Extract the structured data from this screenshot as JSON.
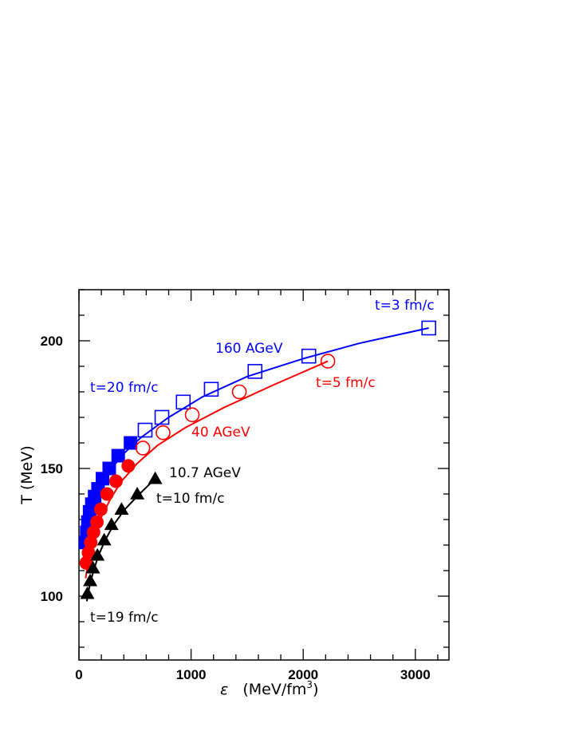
{
  "chart_data": {
    "type": "scatter",
    "xlabel_symbol": "ε",
    "xlabel_units": "(MeV/fm",
    "xlabel_exp": "3",
    "xlabel_close": ")",
    "ylabel": "T  (MeV)",
    "xlim": [
      0,
      3300
    ],
    "ylim": [
      75,
      220
    ],
    "x_ticks": [
      0,
      1000,
      2000,
      3000
    ],
    "y_ticks": [
      100,
      150,
      200
    ],
    "grid": false,
    "series": [
      {
        "name": "160 AGeV",
        "color": "#0000ff",
        "points": [
          {
            "x": 60,
            "y": 121,
            "marker": "square-filled"
          },
          {
            "x": 70,
            "y": 125,
            "marker": "square-filled"
          },
          {
            "x": 80,
            "y": 129,
            "marker": "square-filled"
          },
          {
            "x": 95,
            "y": 133,
            "marker": "square-filled"
          },
          {
            "x": 115,
            "y": 136,
            "marker": "square-filled"
          },
          {
            "x": 140,
            "y": 139,
            "marker": "square-filled"
          },
          {
            "x": 170,
            "y": 142,
            "marker": "square-filled"
          },
          {
            "x": 210,
            "y": 146,
            "marker": "square-filled"
          },
          {
            "x": 270,
            "y": 150,
            "marker": "square-filled"
          },
          {
            "x": 350,
            "y": 155,
            "marker": "square-filled"
          },
          {
            "x": 460,
            "y": 160,
            "marker": "square-filled"
          },
          {
            "x": 590,
            "y": 165,
            "marker": "square-open"
          },
          {
            "x": 740,
            "y": 170,
            "marker": "square-open"
          },
          {
            "x": 930,
            "y": 176,
            "marker": "square-open"
          },
          {
            "x": 1180,
            "y": 181,
            "marker": "square-open"
          },
          {
            "x": 1570,
            "y": 188,
            "marker": "square-open"
          },
          {
            "x": 2050,
            "y": 194,
            "marker": "square-open"
          },
          {
            "x": 3120,
            "y": 205,
            "marker": "square-open"
          }
        ],
        "fit_curve": [
          [
            55,
            119
          ],
          [
            80,
            127
          ],
          [
            120,
            134
          ],
          [
            180,
            141
          ],
          [
            260,
            148
          ],
          [
            380,
            155
          ],
          [
            550,
            162
          ],
          [
            800,
            170
          ],
          [
            1100,
            178
          ],
          [
            1500,
            186
          ],
          [
            2000,
            193
          ],
          [
            2500,
            199
          ],
          [
            3120,
            205
          ]
        ]
      },
      {
        "name": "40 AGeV",
        "color": "#ff0000",
        "points": [
          {
            "x": 65,
            "y": 113,
            "marker": "circle-filled"
          },
          {
            "x": 85,
            "y": 117,
            "marker": "circle-filled"
          },
          {
            "x": 105,
            "y": 121,
            "marker": "circle-filled"
          },
          {
            "x": 130,
            "y": 125,
            "marker": "circle-filled"
          },
          {
            "x": 160,
            "y": 129,
            "marker": "circle-filled"
          },
          {
            "x": 195,
            "y": 134,
            "marker": "circle-filled"
          },
          {
            "x": 250,
            "y": 140,
            "marker": "circle-filled"
          },
          {
            "x": 330,
            "y": 145,
            "marker": "circle-filled"
          },
          {
            "x": 440,
            "y": 151,
            "marker": "circle-filled"
          },
          {
            "x": 570,
            "y": 158,
            "marker": "circle-open"
          },
          {
            "x": 750,
            "y": 164,
            "marker": "circle-open"
          },
          {
            "x": 1010,
            "y": 171,
            "marker": "circle-open"
          },
          {
            "x": 1430,
            "y": 180,
            "marker": "circle-open"
          },
          {
            "x": 2220,
            "y": 192,
            "marker": "circle-open"
          }
        ],
        "fit_curve": [
          [
            60,
            107
          ],
          [
            80,
            113
          ],
          [
            110,
            119
          ],
          [
            150,
            125
          ],
          [
            200,
            131
          ],
          [
            280,
            138
          ],
          [
            380,
            145
          ],
          [
            520,
            152
          ],
          [
            700,
            159
          ],
          [
            950,
            166
          ],
          [
            1300,
            174
          ],
          [
            1750,
            183
          ],
          [
            2220,
            192
          ]
        ]
      },
      {
        "name": "10.7 AGeV",
        "color": "#000000",
        "points": [
          {
            "x": 75,
            "y": 101,
            "marker": "triangle-filled"
          },
          {
            "x": 100,
            "y": 106,
            "marker": "triangle-filled"
          },
          {
            "x": 125,
            "y": 111,
            "marker": "triangle-filled"
          },
          {
            "x": 165,
            "y": 116,
            "marker": "triangle-filled"
          },
          {
            "x": 225,
            "y": 122,
            "marker": "triangle-filled"
          },
          {
            "x": 290,
            "y": 128,
            "marker": "triangle-filled"
          },
          {
            "x": 380,
            "y": 134,
            "marker": "triangle-filled"
          },
          {
            "x": 520,
            "y": 140,
            "marker": "triangle-filled"
          },
          {
            "x": 680,
            "y": 146,
            "marker": "triangle-filled"
          }
        ],
        "fit_curve": [
          [
            70,
            98
          ],
          [
            95,
            104
          ],
          [
            130,
            110
          ],
          [
            175,
            116
          ],
          [
            235,
            122
          ],
          [
            310,
            128
          ],
          [
            410,
            134
          ],
          [
            540,
            140
          ],
          [
            680,
            146
          ]
        ]
      }
    ],
    "annotations": [
      {
        "text": "t=3 fm/c",
        "color": "#0000ff"
      },
      {
        "text": "160 AGeV",
        "color": "#0000ff"
      },
      {
        "text": "t=20 fm/c",
        "color": "#0000ff"
      },
      {
        "text": "t=5 fm/c",
        "color": "#ff0000"
      },
      {
        "text": "40 AGeV",
        "color": "#ff0000"
      },
      {
        "text": "10.7 AGeV",
        "color": "#000000"
      },
      {
        "text": "t=10 fm/c",
        "color": "#000000"
      },
      {
        "text": "t=19 fm/c",
        "color": "#000000"
      }
    ]
  }
}
